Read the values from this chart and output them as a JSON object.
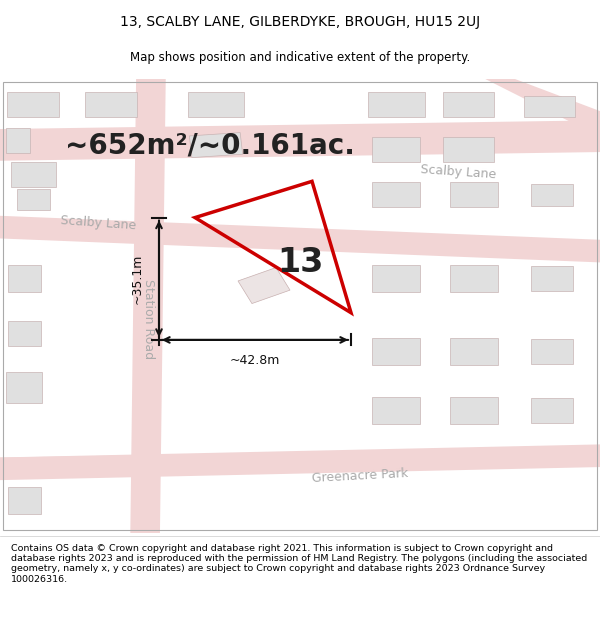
{
  "title": "13, SCALBY LANE, GILBERDYKE, BROUGH, HU15 2UJ",
  "subtitle": "Map shows position and indicative extent of the property.",
  "area_text": "~652m²/~0.161ac.",
  "plot_number": "13",
  "dim_horizontal": "~42.8m",
  "dim_vertical": "~35.1m",
  "footer": "Contains OS data © Crown copyright and database right 2021. This information is subject to Crown copyright and database rights 2023 and is reproduced with the permission of HM Land Registry. The polygons (including the associated geometry, namely x, y co-ordinates) are subject to Crown copyright and database rights 2023 Ordnance Survey 100026316.",
  "bg_color": "#ffffff",
  "road_color": "#f2d5d5",
  "building_color": "#e0e0e0",
  "building_edge": "#c8b4b4",
  "plot_poly_color": "#cc0000",
  "dim_line_color": "#111111",
  "road_label_color": "#aaaaaa",
  "title_fontsize": 10,
  "subtitle_fontsize": 8.5,
  "area_fontsize": 20,
  "plot_num_fontsize": 24,
  "dim_fontsize": 9,
  "road_label_fontsize": 9,
  "footer_fontsize": 6.8
}
